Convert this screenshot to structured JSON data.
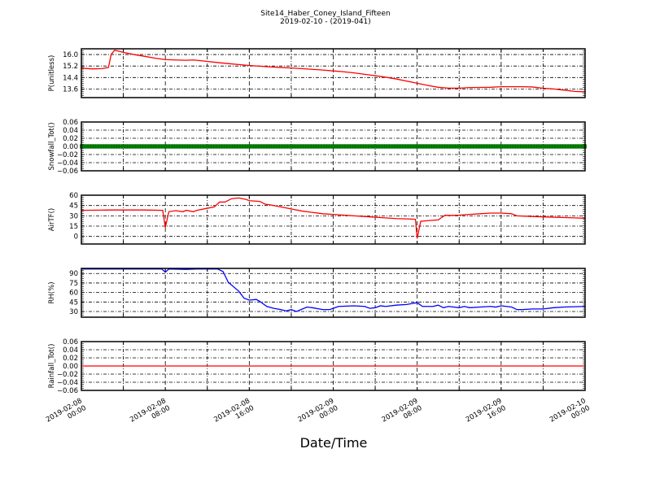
{
  "chart_data": {
    "type": "line",
    "title": "Site14_Haber_Coney_Island_Fifteen",
    "subtitle": "2019-02-10 - (2019-041)",
    "xlabel": "Date/Time",
    "xlim": [
      "2019-02-08T00:00",
      "2019-02-10T00:00"
    ],
    "xticks": [
      {
        "t": "2019-02-08T00:00",
        "l1": "2019-02-08",
        "l2": "00:00"
      },
      {
        "t": "2019-02-08T08:00",
        "l1": "2019-02-08",
        "l2": "08:00"
      },
      {
        "t": "2019-02-08T16:00",
        "l1": "2019-02-08",
        "l2": "16:00"
      },
      {
        "t": "2019-02-09T00:00",
        "l1": "2019-02-09",
        "l2": "00:00"
      },
      {
        "t": "2019-02-09T08:00",
        "l1": "2019-02-09",
        "l2": "08:00"
      },
      {
        "t": "2019-02-09T16:00",
        "l1": "2019-02-09",
        "l2": "16:00"
      },
      {
        "t": "2019-02-10T00:00",
        "l1": "2019-02-10",
        "l2": "00:00"
      }
    ],
    "grid": true,
    "panels": [
      {
        "ylabel": "P(unitless)",
        "ylim": [
          13.0,
          16.4
        ],
        "yticks": [
          "16.0",
          "15.2",
          "14.4",
          "13.6"
        ],
        "color": "#ff0000",
        "points": [
          [
            "2019-02-08T00:00",
            15.05
          ],
          [
            "2019-02-08T01:00",
            15.0
          ],
          [
            "2019-02-08T02:00",
            15.02
          ],
          [
            "2019-02-08T02:35",
            15.1
          ],
          [
            "2019-02-08T02:50",
            16.0
          ],
          [
            "2019-02-08T03:10",
            16.3
          ],
          [
            "2019-02-08T04:00",
            16.15
          ],
          [
            "2019-02-08T05:00",
            16.0
          ],
          [
            "2019-02-08T06:00",
            15.88
          ],
          [
            "2019-02-08T07:00",
            15.75
          ],
          [
            "2019-02-08T08:00",
            15.65
          ],
          [
            "2019-02-08T09:00",
            15.62
          ],
          [
            "2019-02-08T10:00",
            15.6
          ],
          [
            "2019-02-08T10:40",
            15.62
          ],
          [
            "2019-02-08T11:00",
            15.6
          ],
          [
            "2019-02-08T12:00",
            15.52
          ],
          [
            "2019-02-08T13:00",
            15.44
          ],
          [
            "2019-02-08T14:00",
            15.37
          ],
          [
            "2019-02-08T15:00",
            15.3
          ],
          [
            "2019-02-08T16:00",
            15.24
          ],
          [
            "2019-02-08T17:00",
            15.19
          ],
          [
            "2019-02-08T18:00",
            15.14
          ],
          [
            "2019-02-08T19:00",
            15.1
          ],
          [
            "2019-02-08T20:00",
            15.06
          ],
          [
            "2019-02-08T21:00",
            15.02
          ],
          [
            "2019-02-08T22:00",
            14.97
          ],
          [
            "2019-02-08T23:00",
            14.92
          ],
          [
            "2019-02-09T00:00",
            14.86
          ],
          [
            "2019-02-09T01:00",
            14.8
          ],
          [
            "2019-02-09T02:00",
            14.72
          ],
          [
            "2019-02-09T03:00",
            14.62
          ],
          [
            "2019-02-09T04:00",
            14.53
          ],
          [
            "2019-02-09T05:00",
            14.42
          ],
          [
            "2019-02-09T06:00",
            14.3
          ],
          [
            "2019-02-09T07:00",
            14.15
          ],
          [
            "2019-02-09T08:00",
            14.0
          ],
          [
            "2019-02-09T09:00",
            13.85
          ],
          [
            "2019-02-09T10:00",
            13.72
          ],
          [
            "2019-02-09T11:00",
            13.66
          ],
          [
            "2019-02-09T12:00",
            13.66
          ],
          [
            "2019-02-09T13:00",
            13.7
          ],
          [
            "2019-02-09T14:00",
            13.71
          ],
          [
            "2019-02-09T15:00",
            13.72
          ],
          [
            "2019-02-09T16:00",
            13.76
          ],
          [
            "2019-02-09T17:00",
            13.76
          ],
          [
            "2019-02-09T18:00",
            13.76
          ],
          [
            "2019-02-09T19:00",
            13.74
          ],
          [
            "2019-02-09T20:00",
            13.65
          ],
          [
            "2019-02-09T21:00",
            13.6
          ],
          [
            "2019-02-09T22:00",
            13.52
          ],
          [
            "2019-02-09T23:00",
            13.43
          ],
          [
            "2019-02-10T00:00",
            13.4
          ]
        ]
      },
      {
        "ylabel": "Snowfall_Tot()",
        "ylim": [
          -0.06,
          0.06
        ],
        "yticks": [
          "0.06",
          "0.04",
          "0.02",
          "0.00",
          "−0.02",
          "−0.04",
          "−0.06"
        ],
        "color": "#008000",
        "marker": "square",
        "constant_value": 0.0
      },
      {
        "ylabel": "AirTF()",
        "ylim": [
          -11,
          60
        ],
        "yticks": [
          "60",
          "45",
          "30",
          "15",
          "0"
        ],
        "color": "#ff0000",
        "points": [
          [
            "2019-02-08T00:00",
            38
          ],
          [
            "2019-02-08T03:00",
            38.5
          ],
          [
            "2019-02-08T06:00",
            38.5
          ],
          [
            "2019-02-08T07:45",
            38
          ],
          [
            "2019-02-08T08:00",
            13
          ],
          [
            "2019-02-08T08:20",
            36
          ],
          [
            "2019-02-08T09:00",
            37.5
          ],
          [
            "2019-02-08T09:40",
            36
          ],
          [
            "2019-02-08T10:00",
            38
          ],
          [
            "2019-02-08T10:40",
            36
          ],
          [
            "2019-02-08T11:00",
            38
          ],
          [
            "2019-02-08T12:00",
            41
          ],
          [
            "2019-02-08T12:40",
            43
          ],
          [
            "2019-02-08T13:10",
            50
          ],
          [
            "2019-02-08T13:40",
            50
          ],
          [
            "2019-02-08T14:20",
            55
          ],
          [
            "2019-02-08T15:00",
            56
          ],
          [
            "2019-02-08T15:40",
            54
          ],
          [
            "2019-02-08T16:00",
            52
          ],
          [
            "2019-02-08T17:00",
            51
          ],
          [
            "2019-02-08T17:30",
            47
          ],
          [
            "2019-02-08T18:00",
            46
          ],
          [
            "2019-02-08T19:00",
            43
          ],
          [
            "2019-02-08T20:00",
            40
          ],
          [
            "2019-02-08T21:00",
            37
          ],
          [
            "2019-02-08T22:00",
            35
          ],
          [
            "2019-02-08T23:00",
            33
          ],
          [
            "2019-02-09T00:00",
            32
          ],
          [
            "2019-02-09T01:00",
            31
          ],
          [
            "2019-02-09T02:00",
            30
          ],
          [
            "2019-02-09T03:00",
            29
          ],
          [
            "2019-02-09T04:00",
            28
          ],
          [
            "2019-02-09T05:00",
            27
          ],
          [
            "2019-02-09T06:00",
            26
          ],
          [
            "2019-02-09T07:00",
            25.5
          ],
          [
            "2019-02-09T07:50",
            25
          ],
          [
            "2019-02-09T08:00",
            -3
          ],
          [
            "2019-02-09T08:20",
            22
          ],
          [
            "2019-02-09T09:00",
            23
          ],
          [
            "2019-02-09T10:00",
            24
          ],
          [
            "2019-02-09T10:40",
            31
          ],
          [
            "2019-02-09T11:00",
            30.5
          ],
          [
            "2019-02-09T12:00",
            31
          ],
          [
            "2019-02-09T13:00",
            32
          ],
          [
            "2019-02-09T14:00",
            33
          ],
          [
            "2019-02-09T15:00",
            34
          ],
          [
            "2019-02-09T16:00",
            34
          ],
          [
            "2019-02-09T17:00",
            33
          ],
          [
            "2019-02-09T17:30",
            30
          ],
          [
            "2019-02-09T19:00",
            29
          ],
          [
            "2019-02-09T21:00",
            28
          ],
          [
            "2019-02-09T23:00",
            27
          ],
          [
            "2019-02-10T00:00",
            26.5
          ]
        ]
      },
      {
        "ylabel": "RH(%)",
        "ylim": [
          21,
          98
        ],
        "yticks": [
          "90",
          "75",
          "60",
          "45",
          "30"
        ],
        "color": "#0000ff",
        "points": [
          [
            "2019-02-08T00:00",
            97
          ],
          [
            "2019-02-08T07:40",
            97
          ],
          [
            "2019-02-08T08:00",
            92
          ],
          [
            "2019-02-08T08:20",
            97
          ],
          [
            "2019-02-08T10:00",
            96.5
          ],
          [
            "2019-02-08T11:00",
            97
          ],
          [
            "2019-02-08T13:00",
            97
          ],
          [
            "2019-02-08T13:30",
            93
          ],
          [
            "2019-02-08T14:00",
            76
          ],
          [
            "2019-02-08T15:00",
            62
          ],
          [
            "2019-02-08T15:30",
            51
          ],
          [
            "2019-02-08T16:00",
            48
          ],
          [
            "2019-02-08T16:40",
            49
          ],
          [
            "2019-02-08T17:00",
            46
          ],
          [
            "2019-02-08T17:40",
            38
          ],
          [
            "2019-02-08T18:20",
            35
          ],
          [
            "2019-02-08T19:00",
            33
          ],
          [
            "2019-02-08T19:30",
            31
          ],
          [
            "2019-02-08T20:00",
            33
          ],
          [
            "2019-02-08T20:30",
            30
          ],
          [
            "2019-02-08T21:30",
            37
          ],
          [
            "2019-02-08T22:00",
            36
          ],
          [
            "2019-02-08T23:00",
            33
          ],
          [
            "2019-02-08T23:40",
            33
          ],
          [
            "2019-02-09T00:30",
            38
          ],
          [
            "2019-02-09T02:00",
            39
          ],
          [
            "2019-02-09T03:00",
            38
          ],
          [
            "2019-02-09T03:30",
            35
          ],
          [
            "2019-02-09T04:00",
            36
          ],
          [
            "2019-02-09T04:30",
            39
          ],
          [
            "2019-02-09T05:00",
            38
          ],
          [
            "2019-02-09T06:00",
            40
          ],
          [
            "2019-02-09T07:00",
            41
          ],
          [
            "2019-02-09T08:00",
            44
          ],
          [
            "2019-02-09T08:30",
            38
          ],
          [
            "2019-02-09T09:30",
            38
          ],
          [
            "2019-02-09T10:00",
            40
          ],
          [
            "2019-02-09T10:30",
            36
          ],
          [
            "2019-02-09T11:00",
            38
          ],
          [
            "2019-02-09T12:00",
            36
          ],
          [
            "2019-02-09T12:30",
            38
          ],
          [
            "2019-02-09T13:00",
            36
          ],
          [
            "2019-02-09T14:00",
            37
          ],
          [
            "2019-02-09T15:00",
            38
          ],
          [
            "2019-02-09T15:30",
            37
          ],
          [
            "2019-02-09T16:00",
            39
          ],
          [
            "2019-02-09T17:00",
            37
          ],
          [
            "2019-02-09T17:30",
            33
          ],
          [
            "2019-02-09T18:00",
            33
          ],
          [
            "2019-02-09T19:00",
            34
          ],
          [
            "2019-02-09T20:00",
            34
          ],
          [
            "2019-02-09T21:00",
            36
          ],
          [
            "2019-02-09T22:00",
            37
          ],
          [
            "2019-02-09T23:00",
            37.5
          ],
          [
            "2019-02-10T00:00",
            38
          ]
        ]
      },
      {
        "ylabel": "Rainfall_Tot()",
        "ylim": [
          -0.06,
          0.06
        ],
        "yticks": [
          "0.06",
          "0.04",
          "0.02",
          "0.00",
          "−0.02",
          "−0.04",
          "−0.06"
        ],
        "color": "#ff0000",
        "constant_value": 0.0
      }
    ]
  }
}
